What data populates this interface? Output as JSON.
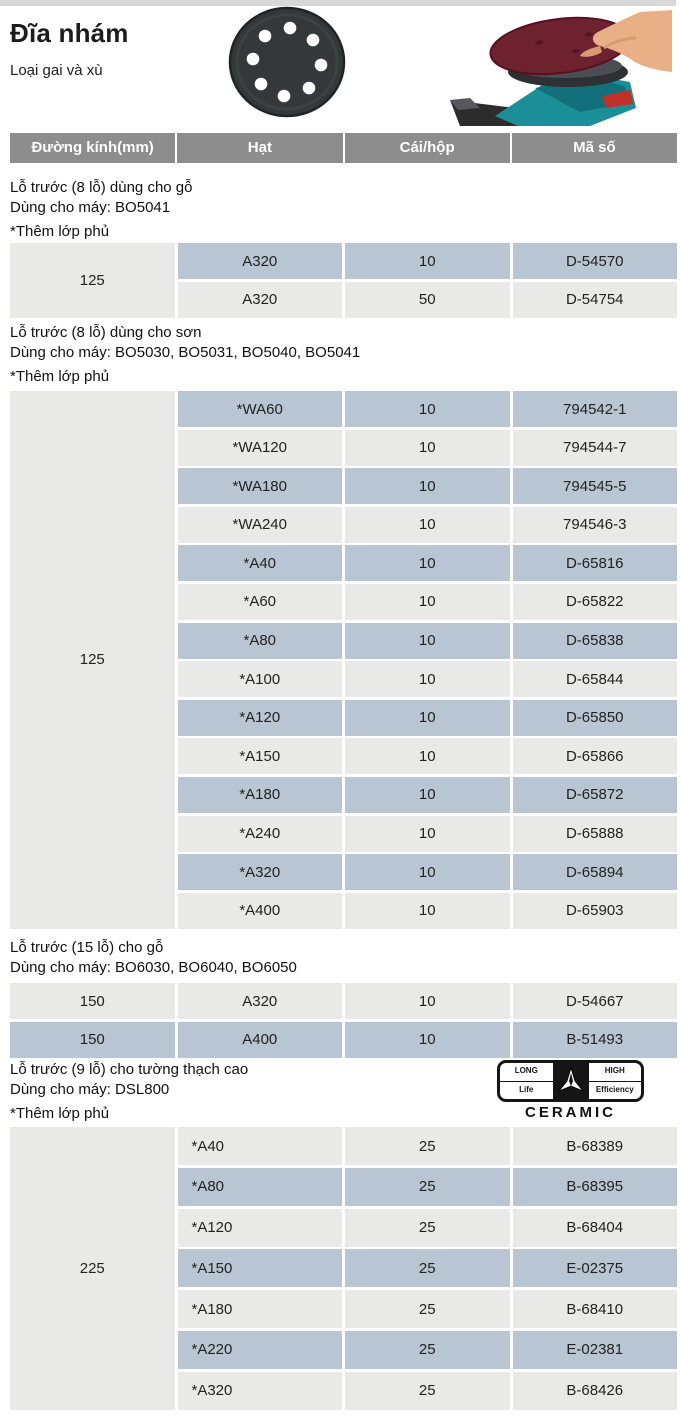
{
  "page": {
    "title": "Đĩa nhám",
    "subtitle": "Loại gai và xù"
  },
  "colors": {
    "row_blue": "#b8c5d2",
    "row_light": "#e9e9e7",
    "header_gray": "#8d8d8d",
    "top_bar": "#d8d8d8"
  },
  "table_header": {
    "columns": [
      "Đường kính(mm)",
      "Hạt",
      "Cái/hộp",
      "Mã số"
    ]
  },
  "sections": [
    {
      "heading_lines": [
        "Lỗ trước (8 lỗ) dùng cho gỗ",
        "Dùng cho máy: BO5041",
        "*Thêm lớp phủ"
      ],
      "diameter": "125",
      "rows": [
        {
          "grit": "A320",
          "per_box": "10",
          "code": "D-54570",
          "tone": "blue"
        },
        {
          "grit": "A320",
          "per_box": "50",
          "code": "D-54754",
          "tone": "light"
        }
      ]
    },
    {
      "heading_lines": [
        "Lỗ trước (8 lỗ) dùng cho sơn",
        "Dùng cho máy: BO5030, BO5031, BO5040, BO5041",
        "*Thêm lớp phủ"
      ],
      "diameter": "125",
      "rows": [
        {
          "grit": "*WA60",
          "per_box": "10",
          "code": "794542-1",
          "tone": "blue"
        },
        {
          "grit": "*WA120",
          "per_box": "10",
          "code": "794544-7",
          "tone": "light"
        },
        {
          "grit": "*WA180",
          "per_box": "10",
          "code": "794545-5",
          "tone": "blue"
        },
        {
          "grit": "*WA240",
          "per_box": "10",
          "code": "794546-3",
          "tone": "light"
        },
        {
          "grit": "*A40",
          "per_box": "10",
          "code": "D-65816",
          "tone": "blue"
        },
        {
          "grit": "*A60",
          "per_box": "10",
          "code": "D-65822",
          "tone": "light"
        },
        {
          "grit": "*A80",
          "per_box": "10",
          "code": "D-65838",
          "tone": "blue"
        },
        {
          "grit": "*A100",
          "per_box": "10",
          "code": "D-65844",
          "tone": "light"
        },
        {
          "grit": "*A120",
          "per_box": "10",
          "code": "D-65850",
          "tone": "blue"
        },
        {
          "grit": "*A150",
          "per_box": "10",
          "code": "D-65866",
          "tone": "light"
        },
        {
          "grit": "*A180",
          "per_box": "10",
          "code": "D-65872",
          "tone": "blue"
        },
        {
          "grit": "*A240",
          "per_box": "10",
          "code": "D-65888",
          "tone": "light"
        },
        {
          "grit": "*A320",
          "per_box": "10",
          "code": "D-65894",
          "tone": "blue"
        },
        {
          "grit": "*A400",
          "per_box": "10",
          "code": "D-65903",
          "tone": "light"
        }
      ]
    },
    {
      "heading_lines": [
        "Lỗ trước (15 lỗ) cho gỗ",
        "Dùng cho máy: BO6030, BO6040, BO6050"
      ],
      "rows": [
        {
          "diameter": "150",
          "grit": "A320",
          "per_box": "10",
          "code": "D-54667",
          "tone": "light"
        },
        {
          "diameter": "150",
          "grit": "A400",
          "per_box": "10",
          "code": "B-51493",
          "tone": "blue"
        }
      ]
    },
    {
      "heading_lines": [
        "Lỗ trước (9 lỗ) cho tường thạch cao",
        "Dùng cho máy: DSL800",
        "*Thêm lớp phủ"
      ],
      "diameter": "225",
      "grit_align": "left",
      "rows": [
        {
          "grit": "*A40",
          "per_box": "25",
          "code": "B-68389",
          "tone": "light"
        },
        {
          "grit": "*A80",
          "per_box": "25",
          "code": "B-68395",
          "tone": "blue"
        },
        {
          "grit": "*A120",
          "per_box": "25",
          "code": "B-68404",
          "tone": "light"
        },
        {
          "grit": "*A150",
          "per_box": "25",
          "code": "E-02375",
          "tone": "blue"
        },
        {
          "grit": "*A180",
          "per_box": "25",
          "code": "B-68410",
          "tone": "light"
        },
        {
          "grit": "*A220",
          "per_box": "25",
          "code": "E-02381",
          "tone": "blue"
        },
        {
          "grit": "*A320",
          "per_box": "25",
          "code": "B-68426",
          "tone": "light"
        }
      ]
    }
  ],
  "ceramic_badge": {
    "left_top": "LONG",
    "left_bottom": "Life",
    "right_top": "HIGH",
    "right_bottom": "Efficiency",
    "label": "CERAMIC"
  }
}
